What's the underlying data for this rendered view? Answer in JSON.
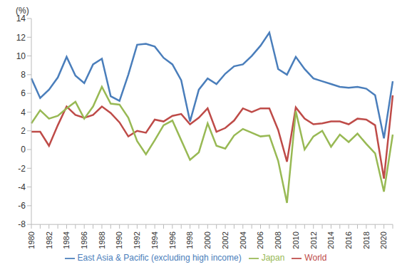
{
  "chart_data": {
    "type": "line",
    "ylabel": "(%)",
    "categories": [
      "1980",
      null,
      "1982",
      null,
      "1984",
      null,
      "1986",
      null,
      "1988",
      null,
      "1990",
      null,
      "1992",
      null,
      "1994",
      null,
      "1996",
      null,
      "1998",
      null,
      "2000",
      null,
      "2002",
      null,
      "2004",
      null,
      "2006",
      null,
      "2008",
      null,
      "2010",
      null,
      "2012",
      null,
      "2014",
      null,
      "2016",
      null,
      "2018",
      null,
      "2020",
      null
    ],
    "series": [
      {
        "name": "East Asia & Pacific (excluding high income)",
        "color": "#4a7ebb",
        "values": [
          7.6,
          5.5,
          6.4,
          7.7,
          9.9,
          7.9,
          7.1,
          9.1,
          9.7,
          5.7,
          5.2,
          8.0,
          11.2,
          11.3,
          11.0,
          9.8,
          9.1,
          7.4,
          3.0,
          6.4,
          7.6,
          7.0,
          8.1,
          8.9,
          9.1,
          10.0,
          11.1,
          12.5,
          8.6,
          8.0,
          9.9,
          8.6,
          7.6,
          7.3,
          7.0,
          6.7,
          6.6,
          6.7,
          6.5,
          5.8,
          1.2,
          7.3
        ]
      },
      {
        "name": "World",
        "color": "#be4b48",
        "values": [
          1.9,
          1.9,
          0.4,
          2.6,
          4.6,
          3.7,
          3.4,
          3.7,
          4.6,
          3.9,
          2.9,
          1.4,
          2.0,
          1.8,
          3.2,
          3.0,
          3.6,
          3.8,
          2.7,
          3.4,
          4.4,
          1.9,
          2.3,
          3.1,
          4.4,
          4.0,
          4.4,
          4.4,
          2.1,
          -1.3,
          4.5,
          3.3,
          2.7,
          2.8,
          3.0,
          3.0,
          2.7,
          3.3,
          3.2,
          2.6,
          -3.1,
          5.8
        ]
      },
      {
        "name": "Japan",
        "color": "#98b954",
        "values": [
          2.8,
          4.2,
          3.3,
          3.6,
          4.4,
          5.1,
          3.3,
          4.6,
          6.7,
          4.9,
          4.8,
          3.4,
          0.9,
          -0.5,
          1.0,
          2.6,
          3.1,
          1.0,
          -1.1,
          -0.3,
          2.8,
          0.4,
          0.1,
          1.5,
          2.2,
          1.8,
          1.4,
          1.5,
          -1.2,
          -5.7,
          4.1,
          0.0,
          1.4,
          2.0,
          0.3,
          1.6,
          0.8,
          1.7,
          0.6,
          -0.4,
          -4.5,
          1.6
        ]
      }
    ],
    "ylim": [
      -8,
      14
    ],
    "yticks": [
      -8,
      -6,
      -4,
      -2,
      0,
      2,
      4,
      6,
      8,
      10,
      12,
      14
    ],
    "grid": false,
    "legend": "bottom"
  }
}
